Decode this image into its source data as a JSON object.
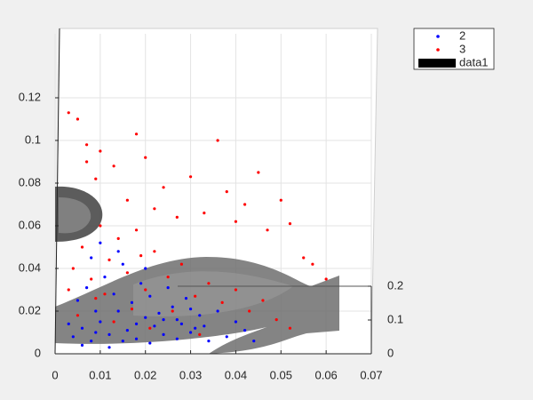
{
  "chart_data": {
    "type": "scatter",
    "xlim": [
      0,
      0.07
    ],
    "xticks": [
      0,
      0.01,
      0.02,
      0.03,
      0.04,
      0.05,
      0.06,
      0.07
    ],
    "ylim": [
      0,
      0.15
    ],
    "yticks": [
      0,
      0.02,
      0.04,
      0.06,
      0.08,
      0.1,
      0.12
    ],
    "zlim": [
      0,
      0.2
    ],
    "zticks": [
      0,
      0.1,
      0.2
    ],
    "grid": true,
    "legend": "top-right",
    "series": [
      {
        "name": "2",
        "color": "#0000ff",
        "x": [
          0.004,
          0.006,
          0.008,
          0.01,
          0.012,
          0.014,
          0.016,
          0.018,
          0.02,
          0.022,
          0.024,
          0.026,
          0.028,
          0.03,
          0.032,
          0.034,
          0.005,
          0.007,
          0.009,
          0.011,
          0.013,
          0.015,
          0.017,
          0.019,
          0.021,
          0.023,
          0.025,
          0.027,
          0.029,
          0.031,
          0.036,
          0.038,
          0.04,
          0.042,
          0.044,
          0.003,
          0.006,
          0.009,
          0.012,
          0.015,
          0.018,
          0.021,
          0.024,
          0.027,
          0.03,
          0.033,
          0.008,
          0.01,
          0.014,
          0.02
        ],
        "values": [
          0.008,
          0.012,
          0.006,
          0.015,
          0.009,
          0.02,
          0.011,
          0.007,
          0.017,
          0.013,
          0.009,
          0.022,
          0.014,
          0.01,
          0.018,
          0.006,
          0.025,
          0.031,
          0.02,
          0.036,
          0.028,
          0.042,
          0.024,
          0.033,
          0.027,
          0.019,
          0.031,
          0.016,
          0.026,
          0.012,
          0.02,
          0.008,
          0.015,
          0.011,
          0.006,
          0.014,
          0.004,
          0.01,
          0.003,
          0.006,
          0.014,
          0.005,
          0.016,
          0.007,
          0.021,
          0.013,
          0.045,
          0.052,
          0.048,
          0.04
        ]
      },
      {
        "name": "3",
        "color": "#ff0000",
        "x": [
          0.003,
          0.005,
          0.007,
          0.007,
          0.009,
          0.01,
          0.013,
          0.016,
          0.018,
          0.02,
          0.022,
          0.024,
          0.027,
          0.03,
          0.033,
          0.036,
          0.038,
          0.04,
          0.042,
          0.045,
          0.047,
          0.05,
          0.052,
          0.055,
          0.057,
          0.06,
          0.004,
          0.006,
          0.008,
          0.01,
          0.012,
          0.014,
          0.016,
          0.018,
          0.02,
          0.022,
          0.025,
          0.028,
          0.031,
          0.034,
          0.037,
          0.04,
          0.043,
          0.046,
          0.049,
          0.052,
          0.005,
          0.009,
          0.013,
          0.017,
          0.021,
          0.026,
          0.032,
          0.003,
          0.011,
          0.019
        ],
        "values": [
          0.113,
          0.11,
          0.098,
          0.09,
          0.082,
          0.095,
          0.088,
          0.072,
          0.103,
          0.092,
          0.068,
          0.078,
          0.064,
          0.083,
          0.066,
          0.1,
          0.076,
          0.062,
          0.07,
          0.085,
          0.058,
          0.072,
          0.061,
          0.045,
          0.042,
          0.035,
          0.04,
          0.05,
          0.035,
          0.06,
          0.044,
          0.054,
          0.038,
          0.058,
          0.03,
          0.048,
          0.036,
          0.042,
          0.027,
          0.033,
          0.024,
          0.03,
          0.02,
          0.025,
          0.016,
          0.012,
          0.018,
          0.026,
          0.015,
          0.021,
          0.012,
          0.02,
          0.009,
          0.03,
          0.028,
          0.046
        ]
      },
      {
        "name": "data1",
        "color": "#000000"
      }
    ]
  }
}
